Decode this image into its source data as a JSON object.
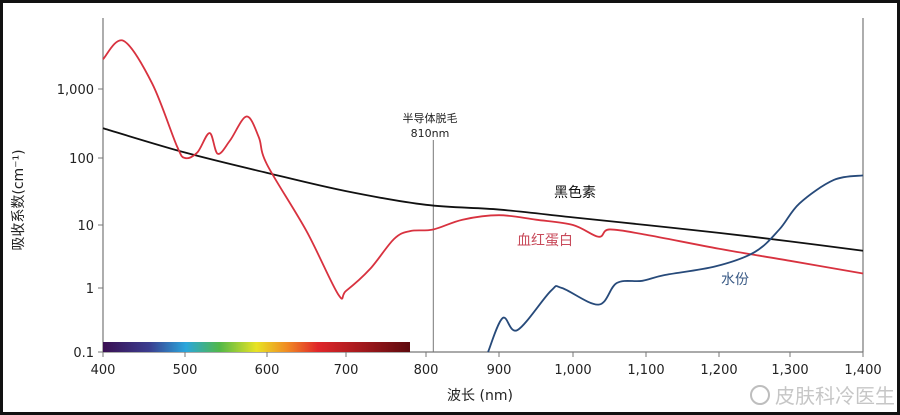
{
  "chart_data": {
    "type": "line",
    "title": "",
    "xlabel": "波长 (nm)",
    "ylabel": "吸收系数(cm⁻¹)",
    "xlim": [
      400,
      1400
    ],
    "ylim": [
      0.1,
      6000
    ],
    "yscale": "log",
    "grid": false,
    "x_ticks": [
      "400",
      "500",
      "600",
      "700",
      "800",
      "900",
      "1,000",
      "1,100",
      "1,200",
      "1,300",
      "1,400"
    ],
    "y_ticks": [
      "0.1",
      "1",
      "10",
      "100",
      "1,000"
    ],
    "annotation": {
      "line1": "半导体脱毛",
      "line2": "810nm",
      "x": 810
    },
    "spectrum_bar": {
      "from": 400,
      "to": 780
    },
    "series": [
      {
        "name": "黑色素",
        "color": "#111111",
        "x": [
          400,
          500,
          600,
          700,
          800,
          900,
          1000,
          1100,
          1200,
          1300,
          1400
        ],
        "y": [
          270,
          120,
          60,
          32,
          20,
          17,
          13,
          10,
          7.5,
          5.5,
          3.9
        ]
      },
      {
        "name": "血红蛋白",
        "color": "#d8323f",
        "x": [
          400,
          425,
          460,
          490,
          500,
          515,
          530,
          540,
          555,
          575,
          590,
          600,
          650,
          690,
          700,
          730,
          760,
          780,
          810,
          850,
          900,
          950,
          1000,
          1035,
          1050,
          1100,
          1200,
          1300,
          1400
        ],
        "y": [
          2700,
          5000,
          1200,
          150,
          100,
          120,
          230,
          115,
          180,
          400,
          200,
          80,
          8,
          0.8,
          0.9,
          2,
          6,
          8,
          8.5,
          12,
          14,
          12,
          10,
          6.5,
          8.5,
          7,
          4.2,
          2.7,
          1.7
        ]
      },
      {
        "name": "水份",
        "color": "#274a7a",
        "x": [
          885,
          905,
          925,
          970,
          985,
          1035,
          1060,
          1095,
          1125,
          1195,
          1250,
          1285,
          1313,
          1360,
          1400
        ],
        "y": [
          0.1,
          0.34,
          0.22,
          0.9,
          1.0,
          0.55,
          1.2,
          1.3,
          1.6,
          2.2,
          3.7,
          8.5,
          21,
          47,
          55
        ]
      }
    ]
  },
  "watermark": "皮肤科冷医生"
}
